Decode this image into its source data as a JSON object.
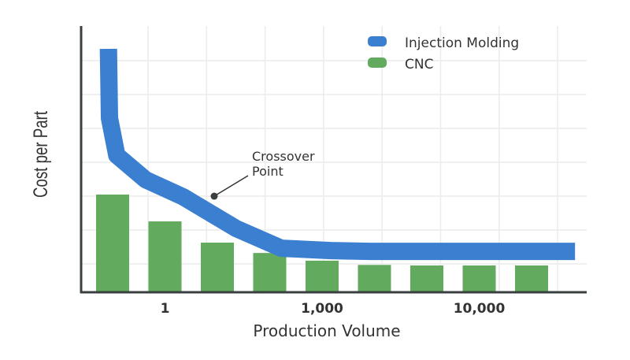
{
  "chart_data": {
    "type": "bar",
    "title": "",
    "xlabel": "Production Volume",
    "ylabel": "Cost per Part",
    "categories": [
      "",
      "1",
      "",
      "",
      "1,000",
      "",
      "",
      "10,000",
      ""
    ],
    "ylim": [
      0,
      10
    ],
    "grid": true,
    "legend_placement": "top-right",
    "colors": {
      "Injection Molding": "#3a7fd0",
      "CNC": "#62aa5e",
      "axis": "#3a3f3f"
    },
    "series": [
      {
        "name": "CNC",
        "type": "bar",
        "values": [
          3.65,
          2.64,
          1.84,
          1.45,
          1.16,
          1.0,
          0.98,
          0.98,
          0.98
        ]
      },
      {
        "name": "Injection Molding",
        "type": "line",
        "points": [
          [
            0.92,
            9.14
          ],
          [
            0.94,
            6.53
          ],
          [
            1.08,
            5.13
          ],
          [
            1.63,
            4.21
          ],
          [
            2.35,
            3.56
          ],
          [
            3.36,
            2.37
          ],
          [
            4.22,
            1.63
          ],
          [
            5.17,
            1.54
          ],
          [
            5.92,
            1.51
          ],
          [
            9.83,
            1.51
          ]
        ]
      }
    ],
    "annotations": [
      {
        "text_lines": [
          "Crossover",
          "Point"
        ],
        "x": 2.94,
        "y": 3.59
      }
    ]
  }
}
